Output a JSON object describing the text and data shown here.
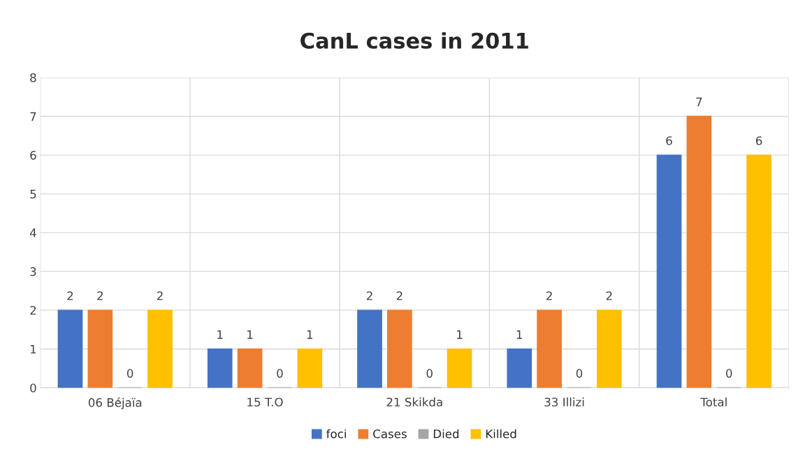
{
  "chart_data": {
    "type": "bar",
    "title": "CanL cases in 2011",
    "categories": [
      "06 Béjaïa",
      "15 T.O",
      "21 Skikda",
      "33 Illizi",
      "Total"
    ],
    "series": [
      {
        "name": "foci",
        "color": "#4472c4",
        "values": [
          2,
          1,
          2,
          1,
          6
        ]
      },
      {
        "name": "Cases",
        "color": "#ed7d31",
        "values": [
          2,
          1,
          2,
          2,
          7
        ]
      },
      {
        "name": "Died",
        "color": "#a5a5a5",
        "values": [
          0,
          0,
          0,
          0,
          0
        ]
      },
      {
        "name": "Killed",
        "color": "#ffc000",
        "values": [
          2,
          1,
          1,
          2,
          6
        ]
      }
    ],
    "ylim": [
      0,
      8
    ],
    "yticks": [
      0,
      1,
      2,
      3,
      4,
      5,
      6,
      7,
      8
    ],
    "grid": true,
    "data_labels": true,
    "legend": "bottom"
  }
}
